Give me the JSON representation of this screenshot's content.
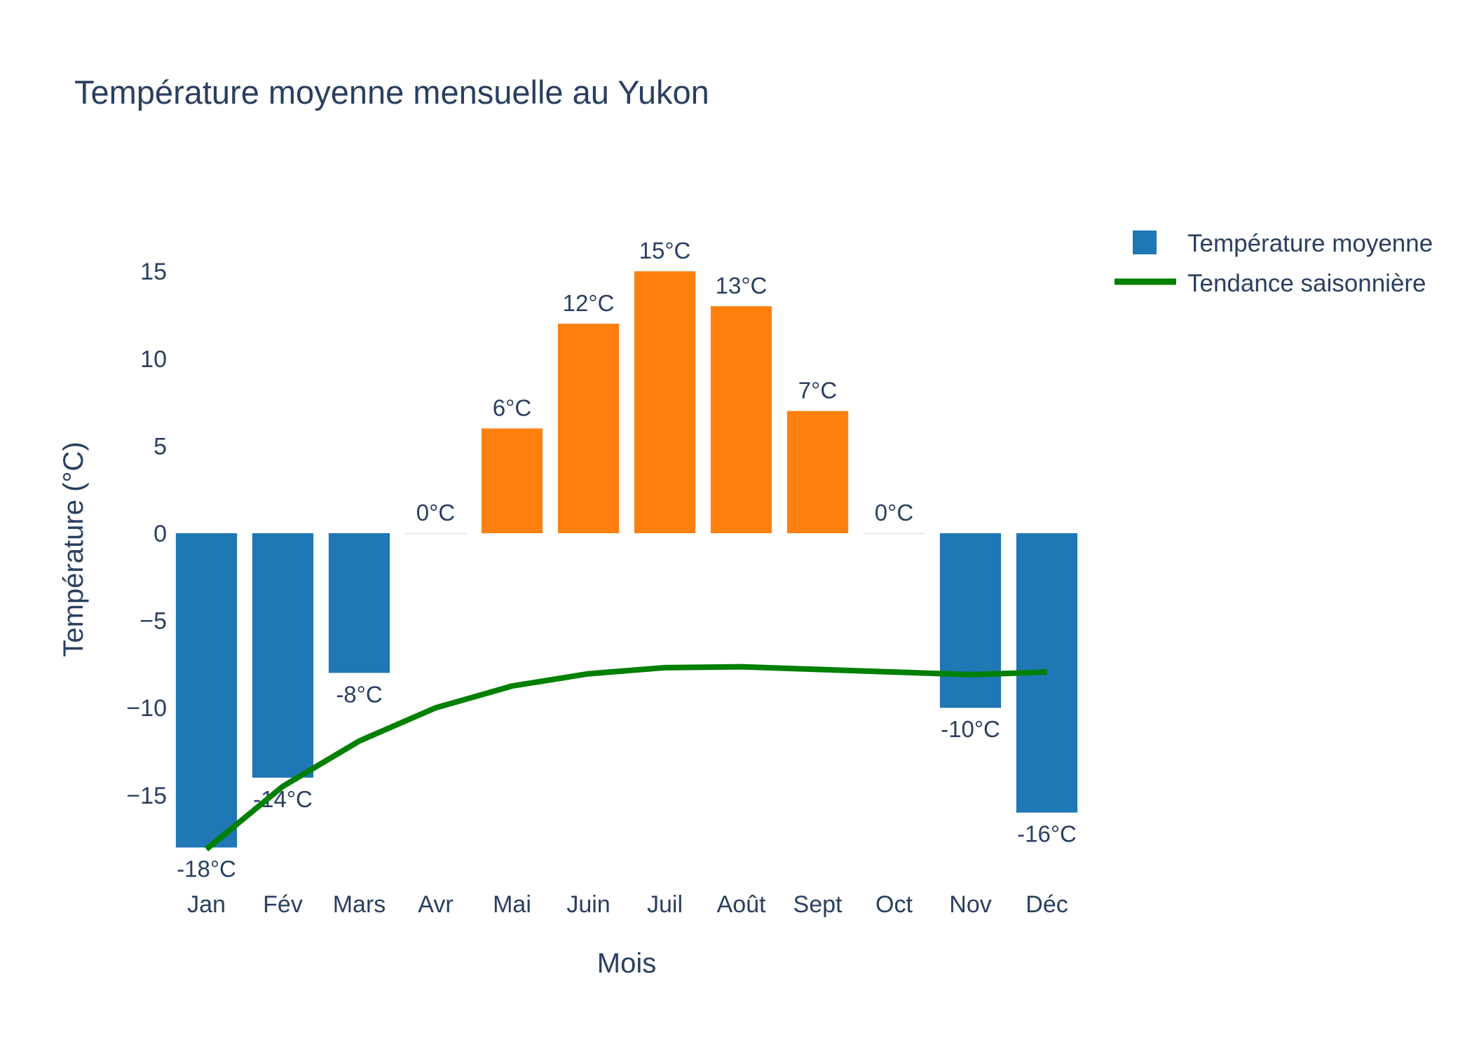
{
  "chart_data": {
    "type": "bar",
    "title": "Température moyenne mensuelle au Yukon",
    "xlabel": "Mois",
    "ylabel": "Température (°C)",
    "ylim": [
      -18.9,
      18.9
    ],
    "yticks": [
      15,
      10,
      5,
      0,
      -5,
      -10,
      -15
    ],
    "ytick_labels": [
      "15",
      "10",
      "5",
      "0",
      "−5",
      "−10",
      "−15"
    ],
    "categories": [
      "Jan",
      "Fév",
      "Mars",
      "Avr",
      "Mai",
      "Juin",
      "Juil",
      "Août",
      "Sept",
      "Oct",
      "Nov",
      "Déc"
    ],
    "series": [
      {
        "name": "Température moyenne",
        "kind": "bar",
        "values": [
          -18,
          -14,
          -8,
          0,
          6,
          12,
          15,
          13,
          7,
          0,
          -10,
          -16
        ],
        "labels": [
          "-18°C",
          "-14°C",
          "-8°C",
          "0°C",
          "6°C",
          "12°C",
          "15°C",
          "13°C",
          "7°C",
          "0°C",
          "-10°C",
          "-16°C"
        ],
        "color_negative": "#1f77b4",
        "color_positive": "#ff7f0e"
      },
      {
        "name": "Tendance saisonnière",
        "kind": "line",
        "values": [
          -18.1,
          -14.5,
          -11.9,
          -10.0,
          -8.75,
          -8.05,
          -7.7,
          -7.65,
          -7.8,
          -7.95,
          -8.1,
          -7.95
        ],
        "color": "#008000"
      }
    ],
    "legend": {
      "position": "top-right",
      "items": [
        {
          "label": "Température moyenne",
          "color": "#1f77b4"
        },
        {
          "label": "Tendance saisonnière",
          "color": "#008000"
        }
      ]
    },
    "grid": false
  }
}
